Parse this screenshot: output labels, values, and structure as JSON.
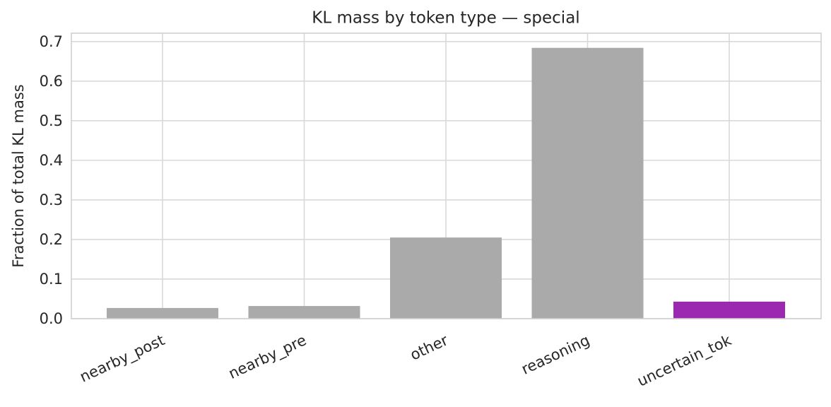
{
  "chart_data": {
    "type": "bar",
    "title": "KL mass by token type — special",
    "ylabel": "Fraction of total KL mass",
    "categories": [
      "nearby_post",
      "nearby_pre",
      "other",
      "reasoning",
      "uncertain_tok"
    ],
    "values": [
      0.027,
      0.032,
      0.205,
      0.684,
      0.043
    ],
    "colors": [
      "#aaaaaa",
      "#aaaaaa",
      "#aaaaaa",
      "#aaaaaa",
      "#9c27b0"
    ],
    "ylim": [
      0,
      0.721
    ],
    "yticks": [
      {
        "value": 0,
        "label": "0.0"
      },
      0.1,
      0.2,
      0.3,
      0.4,
      0.5,
      0.6,
      0.7
    ],
    "grid": true
  }
}
